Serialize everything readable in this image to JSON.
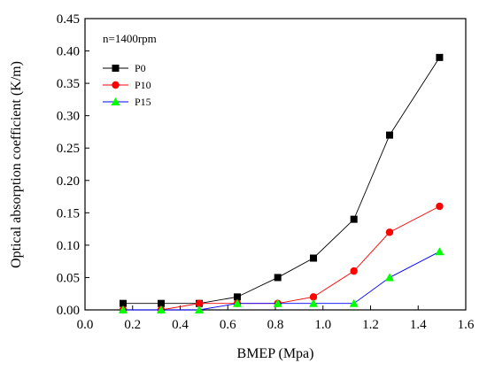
{
  "chart_data": {
    "type": "line",
    "title": "",
    "annotation": "n=1400rpm",
    "xlabel": "BMEP (Mpa)",
    "ylabel": "Optical absorption coefficient (K/m)",
    "xlim": [
      0.0,
      1.6
    ],
    "ylim": [
      0.0,
      0.45
    ],
    "xticks": [
      "0.0",
      "0.2",
      "0.4",
      "0.6",
      "0.8",
      "1.0",
      "1.2",
      "1.4",
      "1.6"
    ],
    "yticks": [
      "0.00",
      "0.05",
      "0.10",
      "0.15",
      "0.20",
      "0.25",
      "0.30",
      "0.35",
      "0.40",
      "0.45"
    ],
    "grid": false,
    "legend_position": "top-left",
    "series": [
      {
        "name": "P0",
        "color": "#000000",
        "marker": "square",
        "x": [
          0.16,
          0.32,
          0.48,
          0.64,
          0.81,
          0.96,
          1.13,
          1.28,
          1.49
        ],
        "y": [
          0.01,
          0.01,
          0.01,
          0.02,
          0.05,
          0.08,
          0.14,
          0.27,
          0.39
        ]
      },
      {
        "name": "P10",
        "color": "#ff0000",
        "marker": "circle",
        "x": [
          0.16,
          0.32,
          0.48,
          0.64,
          0.81,
          0.96,
          1.13,
          1.28,
          1.49
        ],
        "y": [
          0.0,
          0.0,
          0.01,
          0.01,
          0.01,
          0.02,
          0.06,
          0.12,
          0.16
        ]
      },
      {
        "name": "P15",
        "color": "#0000ff",
        "markerColor": "#00ff00",
        "marker": "triangle",
        "x": [
          0.16,
          0.32,
          0.48,
          0.64,
          0.81,
          0.96,
          1.13,
          1.28,
          1.49
        ],
        "y": [
          0.0,
          0.0,
          0.0,
          0.01,
          0.01,
          0.01,
          0.01,
          0.05,
          0.09
        ]
      }
    ]
  }
}
